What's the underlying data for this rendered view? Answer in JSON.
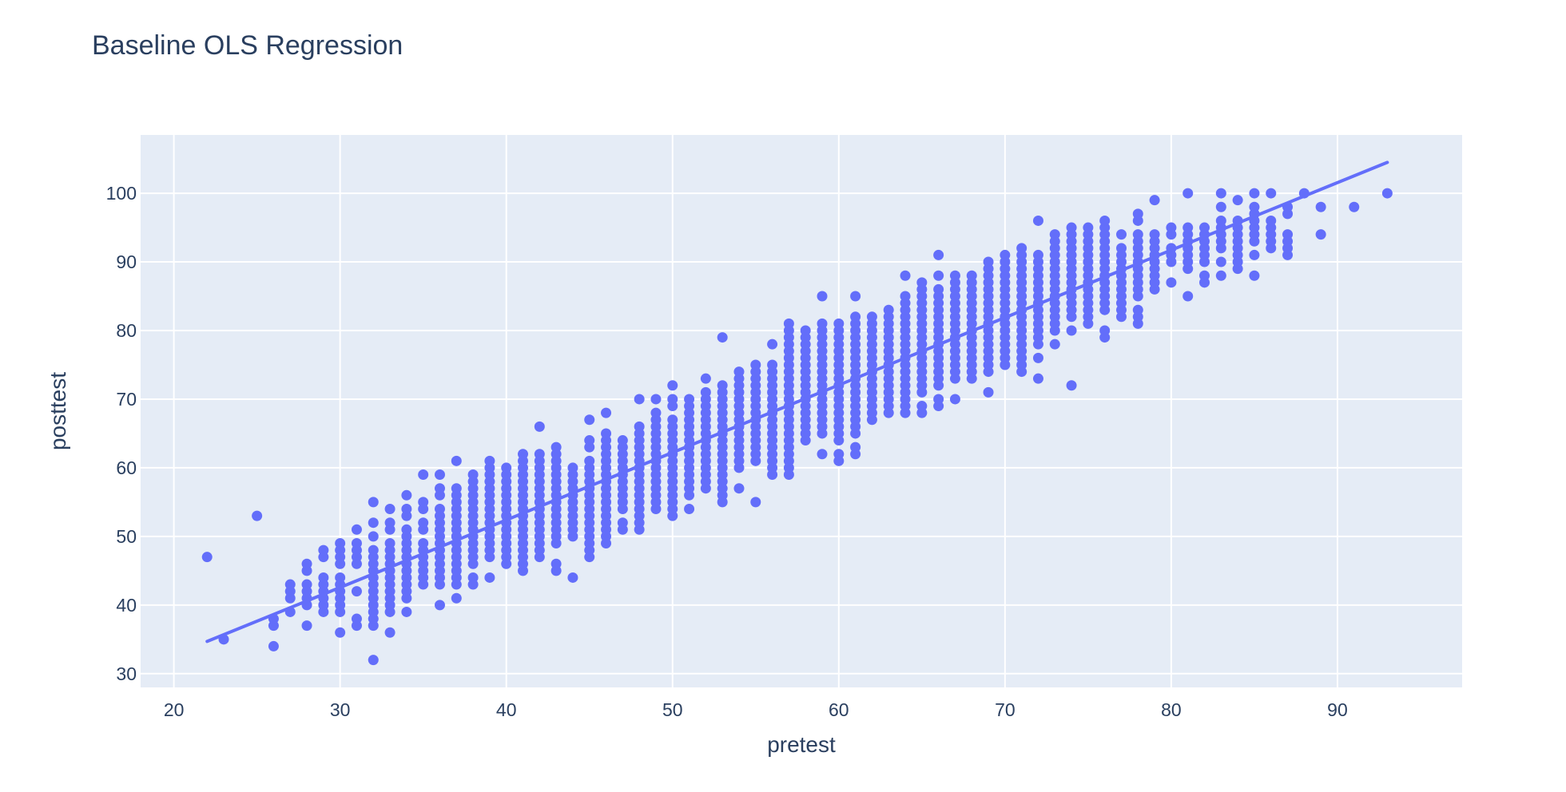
{
  "chart_data": {
    "type": "scatter",
    "title": "Baseline OLS Regression",
    "xlabel": "pretest",
    "ylabel": "posttest",
    "xlim": [
      18,
      97.5
    ],
    "ylim": [
      28,
      108.5
    ],
    "xticks": [
      20,
      30,
      40,
      50,
      60,
      70,
      80,
      90
    ],
    "yticks": [
      30,
      40,
      50,
      60,
      70,
      80,
      90,
      100
    ],
    "grid": true,
    "legend": false,
    "colors": {
      "plot_background": "#E5ECF6",
      "grid": "#ffffff",
      "marker": "#636EFA",
      "line": "#636EFA",
      "text": "#2a3f5f"
    },
    "regression_line": {
      "x": [
        22,
        93
      ],
      "y": [
        34.7,
        104.5
      ]
    },
    "columns": [
      {
        "x": 22,
        "y": [
          47
        ]
      },
      {
        "x": 23,
        "y": [
          35
        ]
      },
      {
        "x": 25,
        "y": [
          53
        ]
      },
      {
        "x": 26,
        "y": [
          34,
          37,
          38
        ]
      },
      {
        "x": 27,
        "y": [
          39,
          41,
          42,
          43
        ]
      },
      {
        "x": 28,
        "y": [
          37,
          40,
          41,
          42,
          43,
          45,
          46
        ]
      },
      {
        "x": 29,
        "y": [
          39,
          40,
          41,
          42,
          43,
          44,
          47,
          48
        ]
      },
      {
        "x": 30,
        "y": [
          36,
          39,
          40,
          41,
          42,
          43,
          44,
          46,
          47,
          48,
          49
        ]
      },
      {
        "x": 31,
        "y": [
          37,
          38,
          42,
          46,
          47,
          48,
          49,
          51
        ]
      },
      {
        "x": 32,
        "y": [
          32,
          37,
          38,
          39,
          40,
          41,
          42,
          43,
          44,
          45,
          46,
          47,
          48,
          50,
          52,
          55
        ]
      },
      {
        "x": 33,
        "y": [
          36,
          39,
          40,
          41,
          42,
          43,
          44,
          45,
          46,
          47,
          48,
          49,
          51,
          52,
          54
        ]
      },
      {
        "x": 34,
        "y": [
          39,
          41,
          42,
          43,
          44,
          45,
          46,
          47,
          48,
          49,
          50,
          51,
          53,
          54,
          56
        ]
      },
      {
        "x": 35,
        "y": [
          43,
          44,
          45,
          46,
          47,
          48,
          49,
          51,
          52,
          54,
          55,
          59
        ]
      },
      {
        "x": 36,
        "y": [
          40,
          43,
          44,
          45,
          46,
          47,
          48,
          49,
          50,
          51,
          52,
          53,
          54,
          56,
          57,
          59
        ]
      },
      {
        "x": 37,
        "y": [
          41,
          43,
          44,
          45,
          46,
          47,
          48,
          49,
          50,
          51,
          52,
          53,
          54,
          55,
          56,
          57,
          61
        ]
      },
      {
        "x": 38,
        "y": [
          43,
          44,
          46,
          47,
          48,
          49,
          50,
          51,
          52,
          53,
          54,
          55,
          56,
          57,
          58,
          59
        ]
      },
      {
        "x": 39,
        "y": [
          44,
          47,
          48,
          49,
          50,
          51,
          52,
          53,
          54,
          55,
          56,
          57,
          58,
          59,
          60,
          61
        ]
      },
      {
        "x": 40,
        "y": [
          46,
          47,
          48,
          49,
          50,
          51,
          52,
          53,
          54,
          55,
          56,
          57,
          58,
          59,
          60
        ]
      },
      {
        "x": 41,
        "y": [
          45,
          46,
          47,
          48,
          49,
          50,
          51,
          52,
          53,
          54,
          55,
          56,
          57,
          58,
          59,
          60,
          61,
          62
        ]
      },
      {
        "x": 42,
        "y": [
          47,
          48,
          49,
          50,
          51,
          52,
          53,
          54,
          55,
          56,
          57,
          58,
          59,
          60,
          61,
          62,
          66
        ]
      },
      {
        "x": 43,
        "y": [
          45,
          46,
          49,
          50,
          51,
          52,
          53,
          54,
          55,
          56,
          57,
          58,
          59,
          60,
          61,
          62,
          63
        ]
      },
      {
        "x": 44,
        "y": [
          44,
          50,
          51,
          52,
          53,
          54,
          55,
          56,
          57,
          58,
          59,
          60
        ]
      },
      {
        "x": 45,
        "y": [
          47,
          48,
          49,
          50,
          51,
          52,
          53,
          54,
          55,
          56,
          57,
          58,
          59,
          60,
          61,
          63,
          64,
          67
        ]
      },
      {
        "x": 46,
        "y": [
          49,
          50,
          51,
          52,
          53,
          54,
          55,
          56,
          57,
          58,
          59,
          60,
          61,
          62,
          63,
          64,
          65,
          68
        ]
      },
      {
        "x": 47,
        "y": [
          51,
          52,
          54,
          55,
          56,
          57,
          58,
          59,
          60,
          61,
          62,
          63,
          64
        ]
      },
      {
        "x": 48,
        "y": [
          51,
          52,
          53,
          54,
          55,
          56,
          57,
          58,
          59,
          60,
          61,
          62,
          63,
          64,
          65,
          66,
          70
        ]
      },
      {
        "x": 49,
        "y": [
          54,
          55,
          56,
          57,
          58,
          59,
          60,
          61,
          62,
          63,
          64,
          65,
          66,
          67,
          68,
          70
        ]
      },
      {
        "x": 50,
        "y": [
          53,
          54,
          55,
          56,
          57,
          58,
          59,
          60,
          61,
          62,
          63,
          64,
          65,
          66,
          67,
          69,
          70,
          72
        ]
      },
      {
        "x": 51,
        "y": [
          54,
          56,
          57,
          58,
          59,
          60,
          61,
          62,
          63,
          64,
          65,
          66,
          67,
          68,
          69,
          70
        ]
      },
      {
        "x": 52,
        "y": [
          57,
          58,
          59,
          60,
          61,
          62,
          63,
          64,
          65,
          66,
          67,
          68,
          69,
          70,
          71,
          73
        ]
      },
      {
        "x": 53,
        "y": [
          55,
          56,
          57,
          58,
          59,
          60,
          61,
          62,
          63,
          64,
          65,
          66,
          67,
          68,
          69,
          70,
          71,
          72,
          79
        ]
      },
      {
        "x": 54,
        "y": [
          57,
          60,
          61,
          62,
          63,
          64,
          65,
          66,
          67,
          68,
          69,
          70,
          71,
          72,
          73,
          74
        ]
      },
      {
        "x": 55,
        "y": [
          55,
          61,
          62,
          63,
          64,
          65,
          66,
          67,
          68,
          69,
          70,
          71,
          72,
          73,
          74,
          75
        ]
      },
      {
        "x": 56,
        "y": [
          59,
          60,
          61,
          62,
          63,
          64,
          65,
          66,
          67,
          68,
          69,
          70,
          71,
          72,
          73,
          74,
          75,
          78
        ]
      },
      {
        "x": 57,
        "y": [
          59,
          60,
          61,
          62,
          63,
          64,
          65,
          66,
          67,
          68,
          69,
          70,
          71,
          72,
          73,
          74,
          75,
          76,
          77,
          78,
          79,
          80,
          81
        ]
      },
      {
        "x": 58,
        "y": [
          64,
          65,
          66,
          67,
          68,
          69,
          70,
          71,
          72,
          73,
          74,
          75,
          76,
          77,
          78,
          79,
          80
        ]
      },
      {
        "x": 59,
        "y": [
          62,
          65,
          66,
          67,
          68,
          69,
          70,
          71,
          72,
          73,
          74,
          75,
          76,
          77,
          78,
          79,
          80,
          81,
          85
        ]
      },
      {
        "x": 60,
        "y": [
          61,
          62,
          64,
          65,
          66,
          67,
          68,
          69,
          70,
          71,
          72,
          73,
          74,
          75,
          76,
          77,
          78,
          79,
          80,
          81
        ]
      },
      {
        "x": 61,
        "y": [
          62,
          63,
          65,
          66,
          67,
          68,
          69,
          70,
          71,
          72,
          73,
          74,
          75,
          76,
          77,
          78,
          79,
          80,
          81,
          82,
          85
        ]
      },
      {
        "x": 62,
        "y": [
          67,
          68,
          69,
          70,
          71,
          72,
          73,
          74,
          75,
          76,
          77,
          78,
          79,
          80,
          81,
          82
        ]
      },
      {
        "x": 63,
        "y": [
          68,
          69,
          70,
          71,
          72,
          73,
          74,
          75,
          76,
          77,
          78,
          79,
          80,
          81,
          82,
          83
        ]
      },
      {
        "x": 64,
        "y": [
          68,
          69,
          70,
          71,
          72,
          73,
          74,
          75,
          76,
          77,
          78,
          79,
          80,
          81,
          82,
          83,
          84,
          85,
          88
        ]
      },
      {
        "x": 65,
        "y": [
          68,
          69,
          71,
          72,
          73,
          74,
          75,
          76,
          77,
          78,
          79,
          80,
          81,
          82,
          83,
          84,
          85,
          86,
          87
        ]
      },
      {
        "x": 66,
        "y": [
          69,
          70,
          72,
          73,
          74,
          75,
          76,
          77,
          78,
          79,
          80,
          81,
          82,
          83,
          84,
          85,
          86,
          88,
          91
        ]
      },
      {
        "x": 67,
        "y": [
          70,
          73,
          74,
          75,
          76,
          77,
          78,
          79,
          80,
          81,
          82,
          83,
          84,
          85,
          86,
          87,
          88
        ]
      },
      {
        "x": 68,
        "y": [
          73,
          74,
          75,
          76,
          77,
          78,
          79,
          80,
          81,
          82,
          83,
          84,
          85,
          86,
          87,
          88
        ]
      },
      {
        "x": 69,
        "y": [
          71,
          74,
          75,
          76,
          77,
          78,
          79,
          80,
          81,
          82,
          83,
          84,
          85,
          86,
          87,
          88,
          89,
          90
        ]
      },
      {
        "x": 70,
        "y": [
          75,
          76,
          77,
          78,
          79,
          80,
          81,
          82,
          83,
          84,
          85,
          86,
          87,
          88,
          89,
          90,
          91
        ]
      },
      {
        "x": 71,
        "y": [
          74,
          75,
          76,
          77,
          78,
          79,
          80,
          81,
          82,
          83,
          84,
          85,
          86,
          87,
          88,
          89,
          90,
          91,
          92
        ]
      },
      {
        "x": 72,
        "y": [
          73,
          76,
          78,
          79,
          80,
          81,
          82,
          83,
          84,
          85,
          86,
          87,
          88,
          89,
          90,
          91,
          96
        ]
      },
      {
        "x": 73,
        "y": [
          78,
          80,
          81,
          82,
          83,
          84,
          85,
          86,
          87,
          88,
          89,
          90,
          91,
          92,
          93,
          94
        ]
      },
      {
        "x": 74,
        "y": [
          72,
          80,
          82,
          83,
          84,
          85,
          86,
          87,
          88,
          89,
          90,
          91,
          92,
          93,
          94,
          95
        ]
      },
      {
        "x": 75,
        "y": [
          81,
          82,
          83,
          84,
          85,
          86,
          87,
          88,
          89,
          90,
          91,
          92,
          93,
          94,
          95
        ]
      },
      {
        "x": 76,
        "y": [
          79,
          80,
          83,
          84,
          85,
          86,
          87,
          88,
          89,
          90,
          91,
          92,
          93,
          94,
          95,
          96
        ]
      },
      {
        "x": 77,
        "y": [
          82,
          83,
          84,
          85,
          86,
          87,
          88,
          89,
          90,
          91,
          92,
          94
        ]
      },
      {
        "x": 78,
        "y": [
          81,
          82,
          83,
          85,
          86,
          87,
          88,
          89,
          90,
          91,
          92,
          93,
          94,
          96,
          97
        ]
      },
      {
        "x": 79,
        "y": [
          86,
          87,
          88,
          89,
          90,
          91,
          92,
          93,
          94,
          99
        ]
      },
      {
        "x": 80,
        "y": [
          87,
          90,
          91,
          92,
          94,
          95
        ]
      },
      {
        "x": 81,
        "y": [
          85,
          89,
          90,
          91,
          92,
          93,
          94,
          95,
          100
        ]
      },
      {
        "x": 82,
        "y": [
          87,
          88,
          90,
          91,
          92,
          93,
          94,
          95
        ]
      },
      {
        "x": 83,
        "y": [
          88,
          90,
          92,
          93,
          94,
          95,
          96,
          98,
          100
        ]
      },
      {
        "x": 84,
        "y": [
          89,
          90,
          91,
          92,
          93,
          94,
          95,
          96,
          99
        ]
      },
      {
        "x": 85,
        "y": [
          88,
          91,
          93,
          94,
          95,
          96,
          97,
          98,
          100
        ]
      },
      {
        "x": 86,
        "y": [
          92,
          93,
          94,
          95,
          96,
          100
        ]
      },
      {
        "x": 87,
        "y": [
          91,
          92,
          93,
          94,
          97,
          98
        ]
      },
      {
        "x": 88,
        "y": [
          100
        ]
      },
      {
        "x": 89,
        "y": [
          94,
          98
        ]
      },
      {
        "x": 91,
        "y": [
          98
        ]
      },
      {
        "x": 93,
        "y": [
          100
        ]
      }
    ]
  }
}
